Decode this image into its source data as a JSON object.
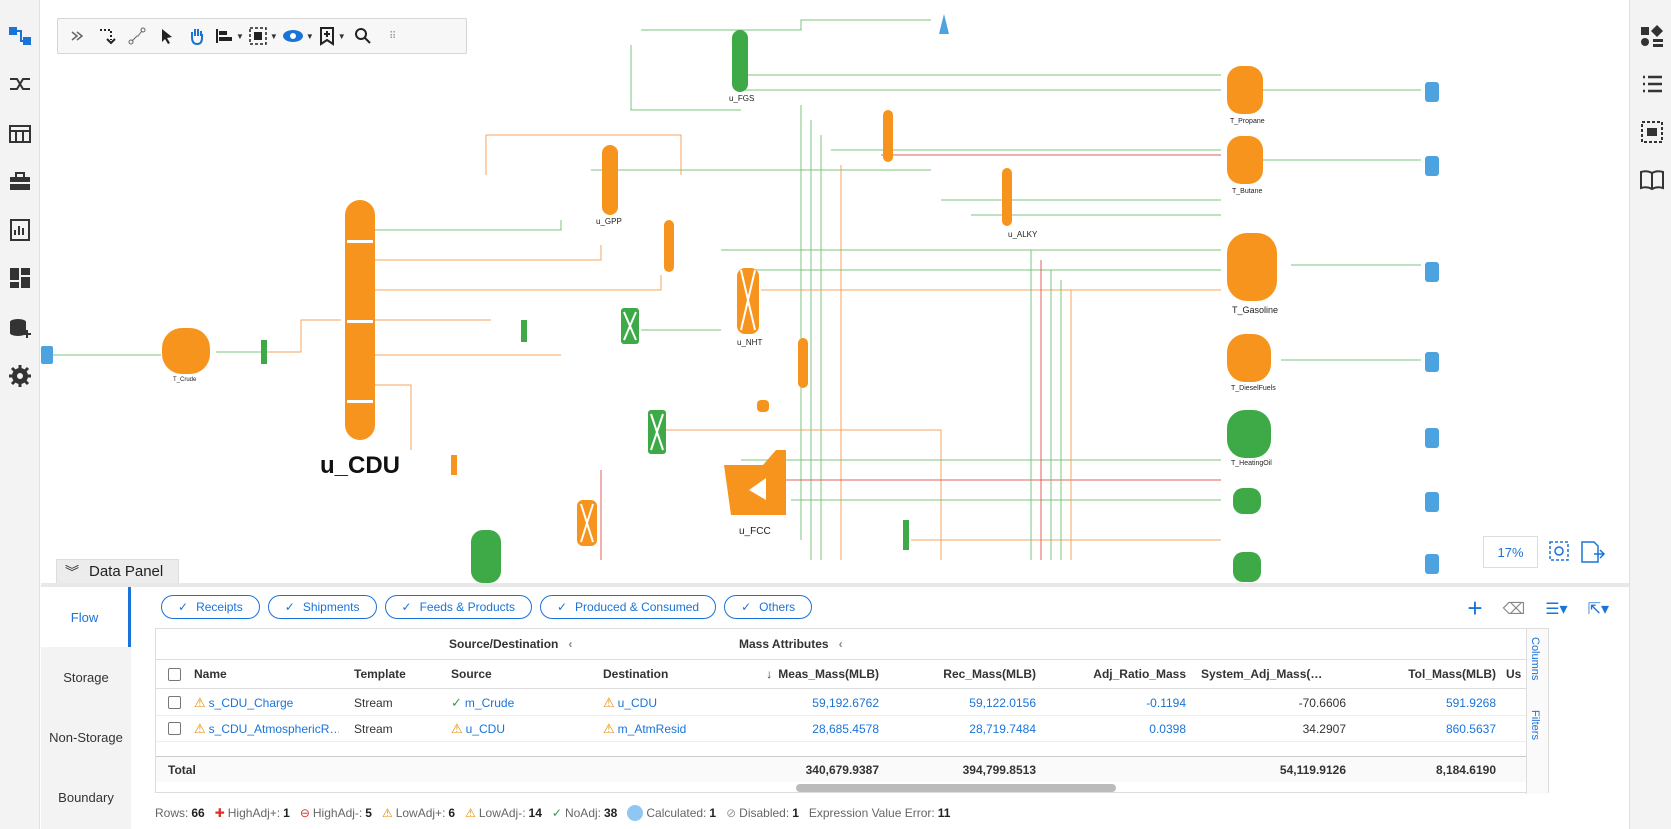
{
  "left_rail": {
    "icons": [
      "flowsheet-icon",
      "connector-icon",
      "table-icon",
      "briefcase-icon",
      "report-icon",
      "dashboard-icon",
      "database-add-icon",
      "settings-icon"
    ]
  },
  "right_rail": {
    "icons": [
      "shapes-icon",
      "list-icon",
      "select-region-icon",
      "book-icon"
    ]
  },
  "canvas": {
    "units": [
      {
        "label": "u_CDU"
      },
      {
        "label": "u_FCC"
      },
      {
        "label": "u_GPP"
      },
      {
        "label": "u_FGS"
      },
      {
        "label": "u_NHT"
      },
      {
        "label": "u_ALKY"
      },
      {
        "label": "T_Crude"
      },
      {
        "label": "T_Propane"
      },
      {
        "label": "T_Butane"
      },
      {
        "label": "T_Gasoline"
      },
      {
        "label": "T_DieselFuels"
      },
      {
        "label": "T_HeatingOil"
      }
    ],
    "zoom": "17%",
    "data_panel_label": "Data Panel"
  },
  "panel": {
    "vtabs": [
      "Flow",
      "Storage",
      "Non-Storage",
      "Boundary"
    ],
    "chips": [
      "Receipts",
      "Shipments",
      "Feeds & Products",
      "Produced & Consumed",
      "Others"
    ],
    "groups": {
      "source_dest": "Source/Destination",
      "mass": "Mass Attributes"
    },
    "columns": [
      "Name",
      "Template",
      "Source",
      "Destination",
      "Meas_Mass(MLB)",
      "Rec_Mass(MLB)",
      "Adj_Ratio_Mass",
      "System_Adj_Mass(…",
      "Tol_Mass(MLB)",
      "Us"
    ],
    "rows": [
      {
        "name": "s_CDU_Charge",
        "template": "Stream",
        "source": "m_Crude",
        "destination": "u_CDU",
        "meas": "59,192.6762",
        "rec": "59,122.0156",
        "adj": "-0.1194",
        "sys": "-70.6606",
        "tol": "591.9268"
      },
      {
        "name": "s_CDU_AtmosphericR…",
        "template": "Stream",
        "source": "u_CDU",
        "destination": "m_AtmResid",
        "meas": "28,685.4578",
        "rec": "28,719.7484",
        "adj": "0.0398",
        "sys": "34.2907",
        "tol": "860.5637"
      }
    ],
    "total": {
      "label": "Total",
      "meas": "340,679.9387",
      "rec": "394,799.8513",
      "sys": "54,119.9126",
      "tol": "8,184.6190"
    },
    "side_tabs": [
      "Columns",
      "Filters"
    ],
    "status": {
      "rows_label": "Rows:",
      "rows": "66",
      "high_plus_label": "HighAdj+:",
      "high_plus": "1",
      "high_minus_label": "HighAdj-:",
      "high_minus": "5",
      "low_plus_label": "LowAdj+:",
      "low_plus": "6",
      "low_minus_label": "LowAdj-:",
      "low_minus": "14",
      "noadj_label": "NoAdj:",
      "noadj": "38",
      "calc_label": "Calculated:",
      "calc": "1",
      "disabled_label": "Disabled:",
      "disabled": "1",
      "expr_label": "Expression Value Error:",
      "expr": "11"
    }
  }
}
